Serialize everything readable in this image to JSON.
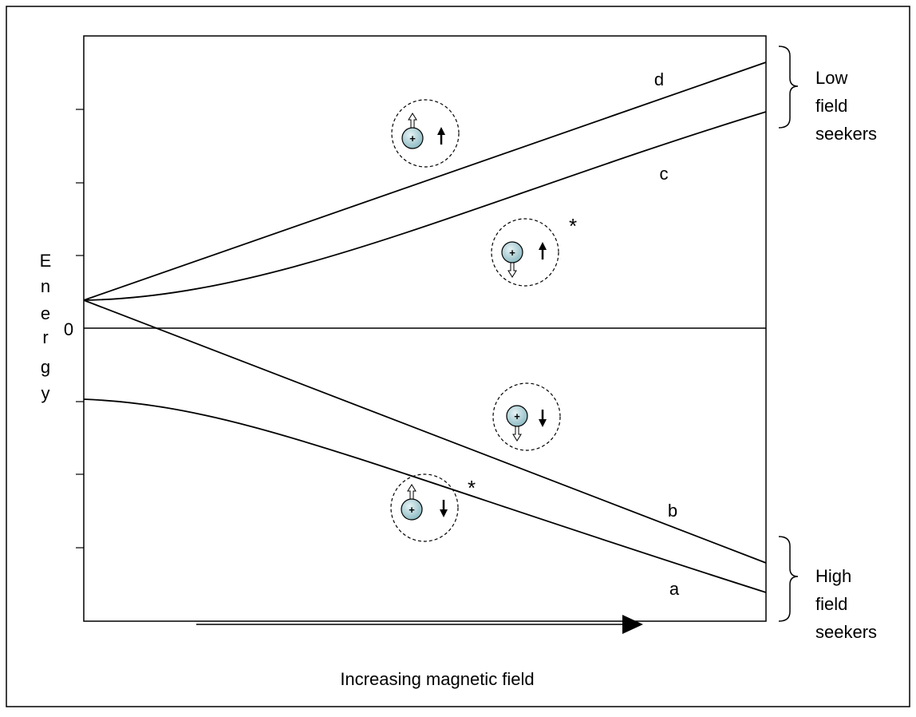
{
  "y_axis": {
    "label_letters": [
      "E",
      "n",
      "e",
      "r",
      "g",
      "y"
    ],
    "zero_label": "0"
  },
  "x_axis": {
    "label": "Increasing magnetic field"
  },
  "curves": [
    {
      "label": "d"
    },
    {
      "label": "c"
    },
    {
      "label": "b"
    },
    {
      "label": "a"
    }
  ],
  "groups": [
    {
      "label_lines": [
        "Low",
        "field",
        "seekers"
      ]
    },
    {
      "label_lines": [
        "High",
        "field",
        "seekers"
      ]
    }
  ],
  "markers": [
    "*",
    "*"
  ],
  "atom_sign": "+"
}
